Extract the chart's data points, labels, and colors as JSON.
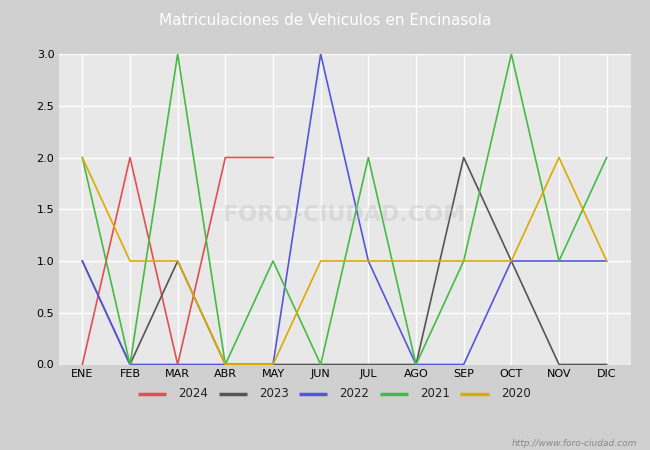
{
  "title": "Matriculaciones de Vehiculos en Encinasola",
  "title_bg_color": "#4a6fa5",
  "title_text_color": "#ffffff",
  "months": [
    "ENE",
    "FEB",
    "MAR",
    "ABR",
    "MAY",
    "JUN",
    "JUL",
    "AGO",
    "SEP",
    "OCT",
    "NOV",
    "DIC"
  ],
  "series": {
    "2024": {
      "color": "#e05050",
      "data": [
        0,
        2,
        0,
        2,
        2,
        null,
        null,
        null,
        null,
        null,
        null,
        null
      ]
    },
    "2023": {
      "color": "#555555",
      "data": [
        1,
        0,
        1,
        0,
        0,
        0,
        0,
        0,
        2,
        1,
        0,
        0
      ]
    },
    "2022": {
      "color": "#5555dd",
      "data": [
        1,
        0,
        0,
        0,
        0,
        3,
        1,
        0,
        0,
        1,
        1,
        1
      ]
    },
    "2021": {
      "color": "#44bb44",
      "data": [
        2,
        0,
        3,
        0,
        1,
        0,
        2,
        0,
        1,
        3,
        1,
        2
      ]
    },
    "2020": {
      "color": "#ddaa00",
      "data": [
        2,
        1,
        1,
        0,
        0,
        1,
        1,
        1,
        1,
        1,
        2,
        1
      ]
    }
  },
  "ylim": [
    0,
    3.0
  ],
  "yticks": [
    0.0,
    0.5,
    1.0,
    1.5,
    2.0,
    2.5,
    3.0
  ],
  "fig_bg_color": "#d0d0d0",
  "plot_bg_color": "#e8e8e8",
  "grid_color": "#ffffff",
  "watermark": "http://www.foro-ciudad.com",
  "legend_order": [
    "2024",
    "2023",
    "2022",
    "2021",
    "2020"
  ]
}
